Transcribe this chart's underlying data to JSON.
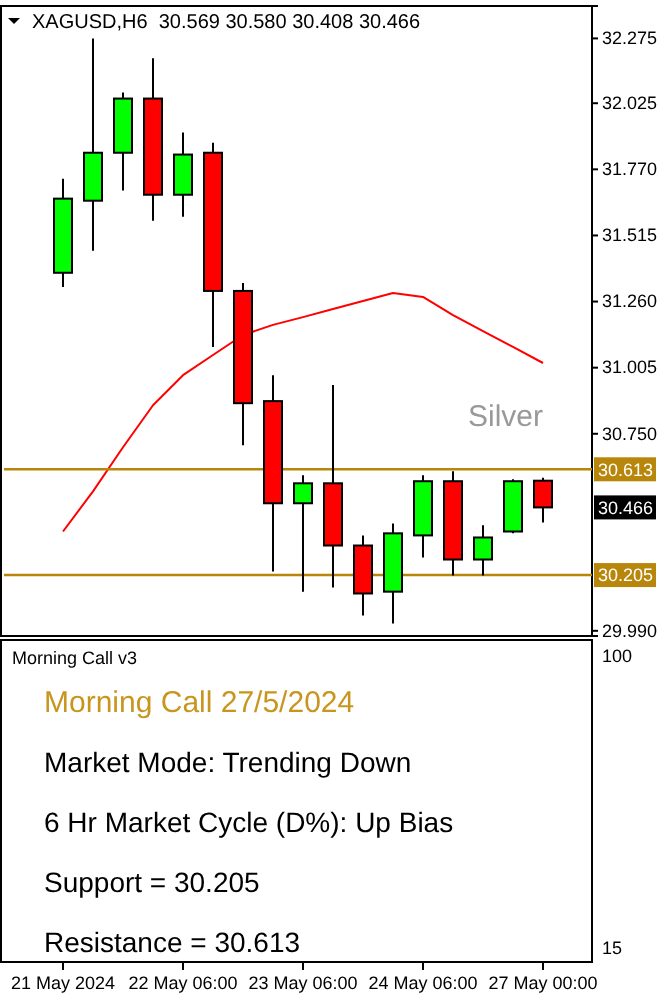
{
  "chart_data": [
    {
      "type": "candlestick",
      "title": "XAGUSD,H6  30.569 30.580 30.408 30.466",
      "categories": [
        null,
        null,
        null,
        null,
        null,
        null,
        null,
        null,
        null,
        null,
        null,
        null,
        null,
        null,
        null,
        null,
        null
      ],
      "ohlc": [
        [
          31.371,
          31.734,
          31.316,
          31.657
        ],
        [
          31.649,
          32.275,
          31.456,
          31.834
        ],
        [
          31.834,
          32.066,
          31.688,
          32.043
        ],
        [
          32.043,
          32.198,
          31.572,
          31.672
        ],
        [
          31.672,
          31.912,
          31.587,
          31.827
        ],
        [
          31.834,
          31.873,
          31.085,
          31.301
        ],
        [
          31.301,
          31.332,
          30.706,
          30.868
        ],
        [
          30.876,
          30.976,
          30.219,
          30.482
        ],
        [
          30.482,
          30.59,
          30.141,
          30.559
        ],
        [
          30.559,
          30.938,
          30.157,
          30.319
        ],
        [
          30.319,
          30.358,
          30.049,
          30.134
        ],
        [
          30.141,
          30.404,
          30.018,
          30.366
        ],
        [
          30.358,
          30.59,
          30.273,
          30.567
        ],
        [
          30.567,
          30.605,
          30.203,
          30.265
        ],
        [
          30.265,
          30.397,
          30.203,
          30.35
        ],
        [
          30.373,
          30.575,
          30.366,
          30.567
        ],
        [
          30.569,
          30.58,
          30.408,
          30.466
        ]
      ],
      "colors": [
        "#00ff00",
        "#00ff00",
        "#00ff00",
        "#ff0000",
        "#00ff00",
        "#ff0000",
        "#ff0000",
        "#ff0000",
        "#00ff00",
        "#ff0000",
        "#ff0000",
        "#00ff00",
        "#00ff00",
        "#ff0000",
        "#00ff00",
        "#00ff00",
        "#ff0000"
      ],
      "series": [
        {
          "type": "line",
          "color": "#ff0000",
          "values": [
            30.373,
            30.528,
            30.698,
            30.86,
            30.976,
            31.054,
            31.131,
            31.17,
            31.2,
            31.231,
            31.262,
            31.293,
            31.278,
            31.208,
            31.146,
            31.085,
            31.023
          ]
        }
      ],
      "ylim": [
        29.97,
        32.4
      ],
      "yticks": [
        {
          "value": 29.99,
          "label": "29.990"
        },
        {
          "value": 30.75,
          "label": "30.750"
        },
        31.005,
        {
          "value": 31.26,
          "label": "31.260"
        },
        31.515,
        {
          "value": 31.77,
          "label": "31.770"
        },
        32.025,
        32.275
      ],
      "ref_lines": [
        {
          "axis": "y",
          "value": 30.613,
          "label": "30.613",
          "color": "#b8860b"
        },
        {
          "axis": "y",
          "value": 30.205,
          "label": "30.205",
          "color": "#b8860b"
        }
      ],
      "annotations": [
        "Silver",
        "30.466"
      ],
      "grid": false
    },
    {
      "type": "other",
      "title": "Morning Call v3",
      "categories": [
        "21 May 2024",
        null,
        null,
        null,
        "22 May 06:00",
        null,
        null,
        null,
        "23 May 06:00",
        null,
        null,
        null,
        "24 May 06:00",
        null,
        null,
        null,
        "27 May 00:00"
      ],
      "annotations": [
        "Morning Call 27/5/2024",
        "Market Mode: Trending Down",
        "6 Hr Market Cycle (D%): Up Bias",
        "Support = 30.205",
        "Resistance = 30.613",
        "100",
        "15"
      ]
    }
  ]
}
